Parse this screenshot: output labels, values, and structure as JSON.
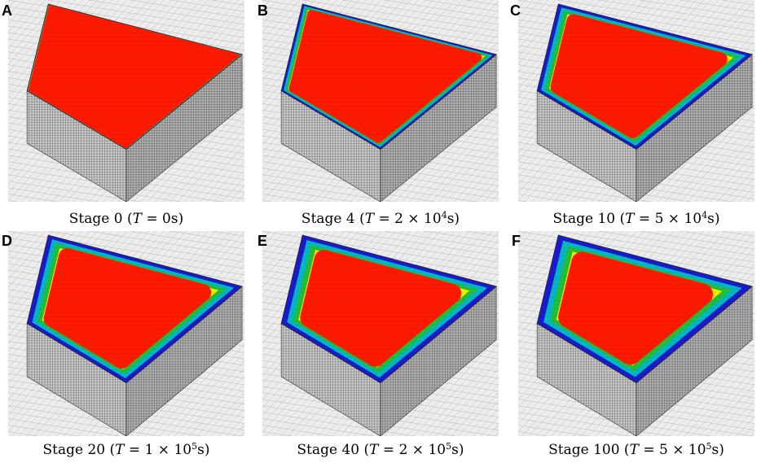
{
  "panels": [
    {
      "letter": "A",
      "stage": "Stage 0",
      "time_var": "T",
      "equals": " = ",
      "mantissa": "0s",
      "times": "",
      "base": "",
      "exponent": "",
      "unit": "",
      "hot_fraction": 0.98
    },
    {
      "letter": "B",
      "stage": "Stage 4",
      "time_var": "T",
      "equals": " = ",
      "mantissa": "2",
      "times": " × ",
      "base": "10",
      "exponent": "4",
      "unit": "s",
      "hot_fraction": 0.86
    },
    {
      "letter": "C",
      "stage": "Stage 10",
      "time_var": "T",
      "equals": " = ",
      "mantissa": "5",
      "times": " × ",
      "base": "10",
      "exponent": "4",
      "unit": "s",
      "hot_fraction": 0.76
    },
    {
      "letter": "D",
      "stage": "Stage 20",
      "time_var": "T",
      "equals": " = ",
      "mantissa": "1",
      "times": " × ",
      "base": "10",
      "exponent": "5",
      "unit": "s",
      "hot_fraction": 0.7
    },
    {
      "letter": "E",
      "stage": "Stage 40",
      "time_var": "T",
      "equals": " = ",
      "mantissa": "2",
      "times": " × ",
      "base": "10",
      "exponent": "5",
      "unit": "s",
      "hot_fraction": 0.66
    },
    {
      "letter": "F",
      "stage": "Stage 100",
      "time_var": "T",
      "equals": " = ",
      "mantissa": "5",
      "times": " × ",
      "base": "10",
      "exponent": "5",
      "unit": "s",
      "hot_fraction": 0.62
    }
  ],
  "colors": {
    "hot": "#ff1a00",
    "orange": "#ff8c00",
    "yellow": "#f5f000",
    "green": "#22c03a",
    "cyan": "#00b8c8",
    "blue": "#1a1ad0",
    "mesh_line": "#2a2a2a",
    "block_face": "#c8c8c8",
    "ground": "#ececec"
  }
}
